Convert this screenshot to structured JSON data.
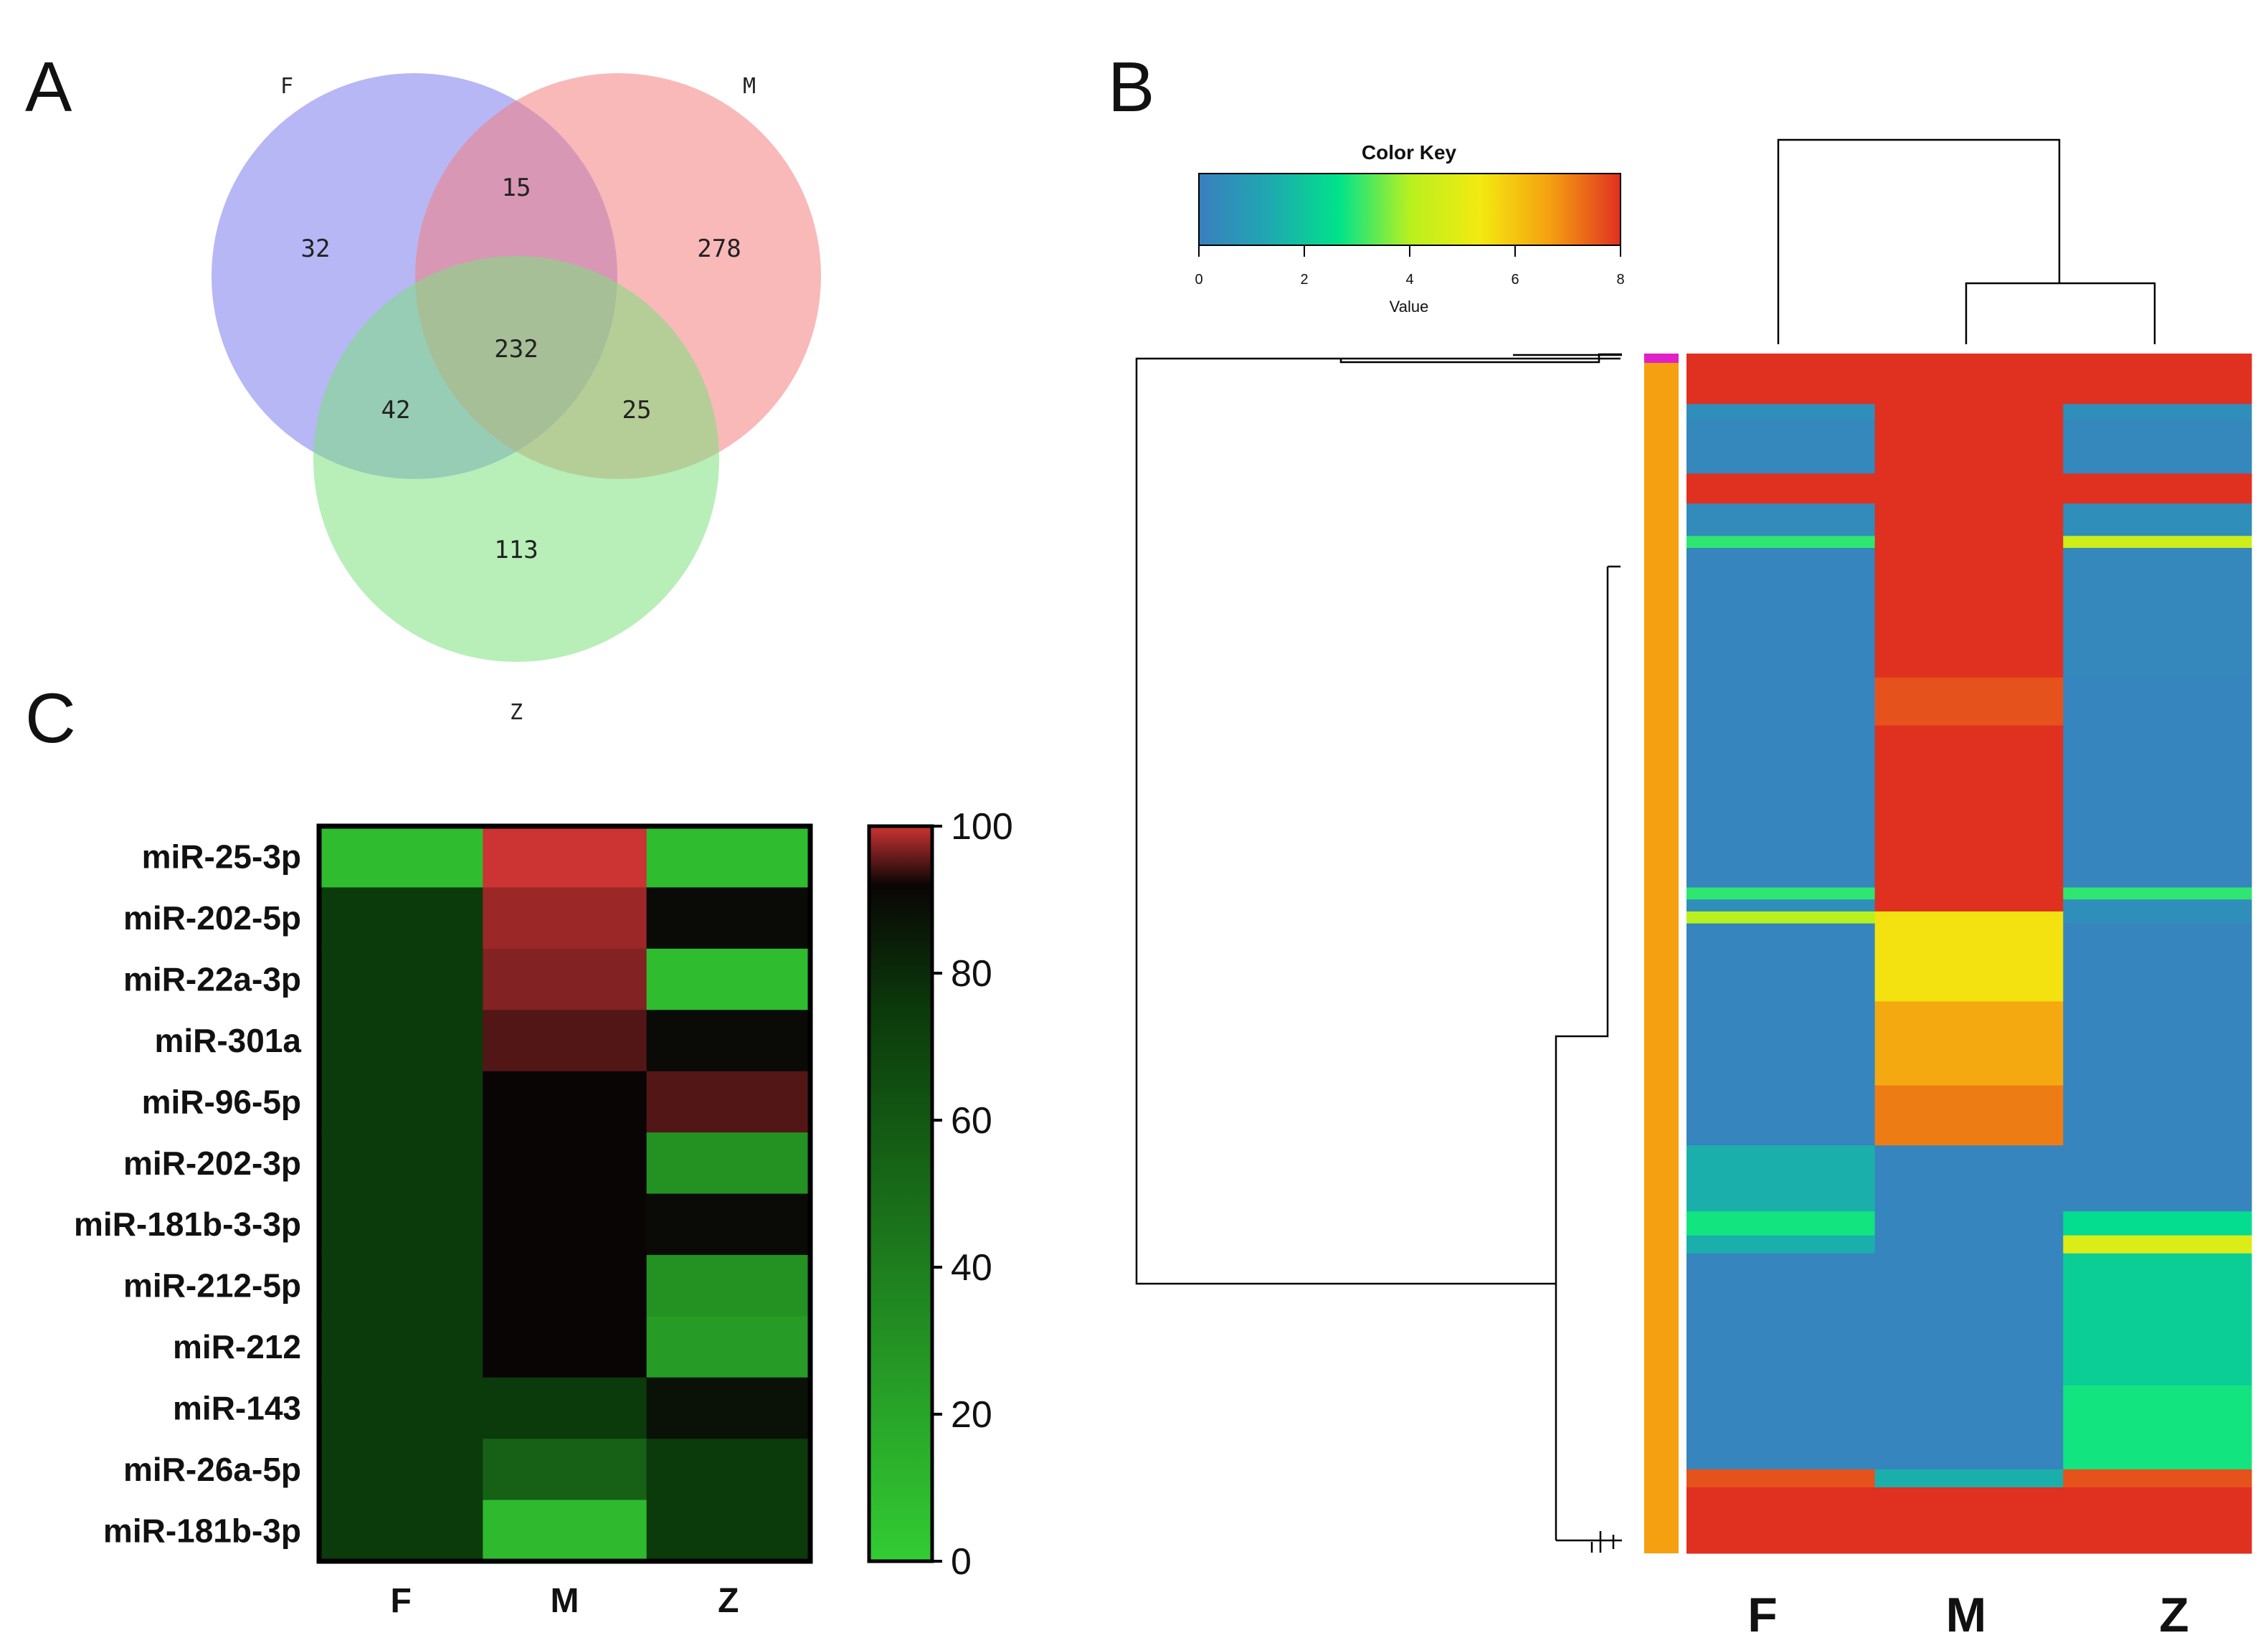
{
  "panels": {
    "a": "A",
    "b": "B",
    "c": "C"
  },
  "chart_data": [
    {
      "type": "venn",
      "panel": "A",
      "sets": [
        "F",
        "M",
        "Z"
      ],
      "regions": {
        "F_only": 32,
        "M_only": 278,
        "Z_only": 113,
        "F_M": 15,
        "F_Z": 42,
        "M_Z": 25,
        "F_M_Z": 232
      },
      "colors": {
        "F": "#7b7bef",
        "M": "#f48080",
        "Z": "#7ee07e"
      }
    },
    {
      "type": "heatmap",
      "panel": "B",
      "title": "Color Key",
      "value_label": "Value",
      "columns": [
        "F",
        "M",
        "Z"
      ],
      "scale_range": [
        0,
        8
      ],
      "scale_ticks": [
        "0",
        "2",
        "4",
        "6",
        "8"
      ],
      "colormap": [
        "#3a7fc0",
        "#1fa8b0",
        "#00e38a",
        "#b8f020",
        "#f3ea10",
        "#f5a010",
        "#e03020"
      ],
      "row_side_colors": {
        "top_band": "#e020c8",
        "main": "#f5a010"
      },
      "row_bands": [
        {
          "from": 0.0,
          "to": 0.042,
          "values": [
            8.0,
            8.0,
            8.0
          ]
        },
        {
          "from": 0.042,
          "to": 0.055,
          "values": [
            0.5,
            8.0,
            0.5
          ]
        },
        {
          "from": 0.055,
          "to": 0.1,
          "values": [
            0.3,
            8.0,
            0.3
          ]
        },
        {
          "from": 0.1,
          "to": 0.125,
          "values": [
            8.0,
            8.0,
            8.0
          ]
        },
        {
          "from": 0.125,
          "to": 0.152,
          "values": [
            0.4,
            8.0,
            0.5
          ]
        },
        {
          "from": 0.152,
          "to": 0.162,
          "values": [
            3.0,
            8.0,
            4.5
          ]
        },
        {
          "from": 0.162,
          "to": 0.27,
          "values": [
            0.2,
            8.0,
            0.3
          ]
        },
        {
          "from": 0.27,
          "to": 0.31,
          "values": [
            0.2,
            7.6,
            0.2
          ]
        },
        {
          "from": 0.31,
          "to": 0.445,
          "values": [
            0.2,
            8.0,
            0.2
          ]
        },
        {
          "from": 0.445,
          "to": 0.455,
          "values": [
            3.0,
            8.0,
            3.0
          ]
        },
        {
          "from": 0.455,
          "to": 0.465,
          "values": [
            0.5,
            8.0,
            0.5
          ]
        },
        {
          "from": 0.465,
          "to": 0.475,
          "values": [
            4.0,
            5.5,
            0.5
          ]
        },
        {
          "from": 0.475,
          "to": 0.54,
          "values": [
            0.2,
            5.5,
            0.2
          ]
        },
        {
          "from": 0.54,
          "to": 0.61,
          "values": [
            0.2,
            6.5,
            0.2
          ]
        },
        {
          "from": 0.61,
          "to": 0.66,
          "values": [
            0.2,
            7.1,
            0.2
          ]
        },
        {
          "from": 0.66,
          "to": 0.715,
          "values": [
            1.5,
            0.2,
            0.2
          ]
        },
        {
          "from": 0.715,
          "to": 0.735,
          "values": [
            2.8,
            0.2,
            2.5
          ]
        },
        {
          "from": 0.735,
          "to": 0.75,
          "values": [
            1.5,
            0.2,
            4.8
          ]
        },
        {
          "from": 0.75,
          "to": 0.86,
          "values": [
            0.2,
            0.2,
            2.2
          ]
        },
        {
          "from": 0.86,
          "to": 0.93,
          "values": [
            0.2,
            0.2,
            2.8
          ]
        },
        {
          "from": 0.93,
          "to": 0.945,
          "values": [
            7.6,
            1.5,
            7.6
          ]
        },
        {
          "from": 0.945,
          "to": 1.0,
          "values": [
            8.0,
            8.0,
            8.0
          ]
        }
      ]
    },
    {
      "type": "heatmap",
      "panel": "C",
      "columns": [
        "F",
        "M",
        "Z"
      ],
      "rows": [
        "miR-25-3p",
        "miR-202-5p",
        "miR-22a-3p",
        "miR-301a",
        "miR-96-5p",
        "miR-202-3p",
        "miR-181b-3-3p",
        "miR-212-5p",
        "miR-212",
        "miR-143",
        "miR-26a-5p",
        "miR-181b-3p"
      ],
      "values": [
        [
          8,
          100,
          8
        ],
        [
          75,
          98,
          90
        ],
        [
          75,
          97,
          8
        ],
        [
          75,
          95,
          90
        ],
        [
          75,
          92,
          95
        ],
        [
          75,
          92,
          30
        ],
        [
          75,
          92,
          90
        ],
        [
          75,
          92,
          30
        ],
        [
          75,
          92,
          25
        ],
        [
          75,
          75,
          88
        ],
        [
          75,
          55,
          75
        ],
        [
          75,
          10,
          75
        ]
      ],
      "scale_range": [
        0,
        100
      ],
      "scale_ticks": [
        "0",
        "20",
        "40",
        "60",
        "80",
        "100"
      ],
      "colormap": [
        "#33cc33",
        "#0b3a0b",
        "#000000",
        "#cc3333"
      ]
    }
  ]
}
